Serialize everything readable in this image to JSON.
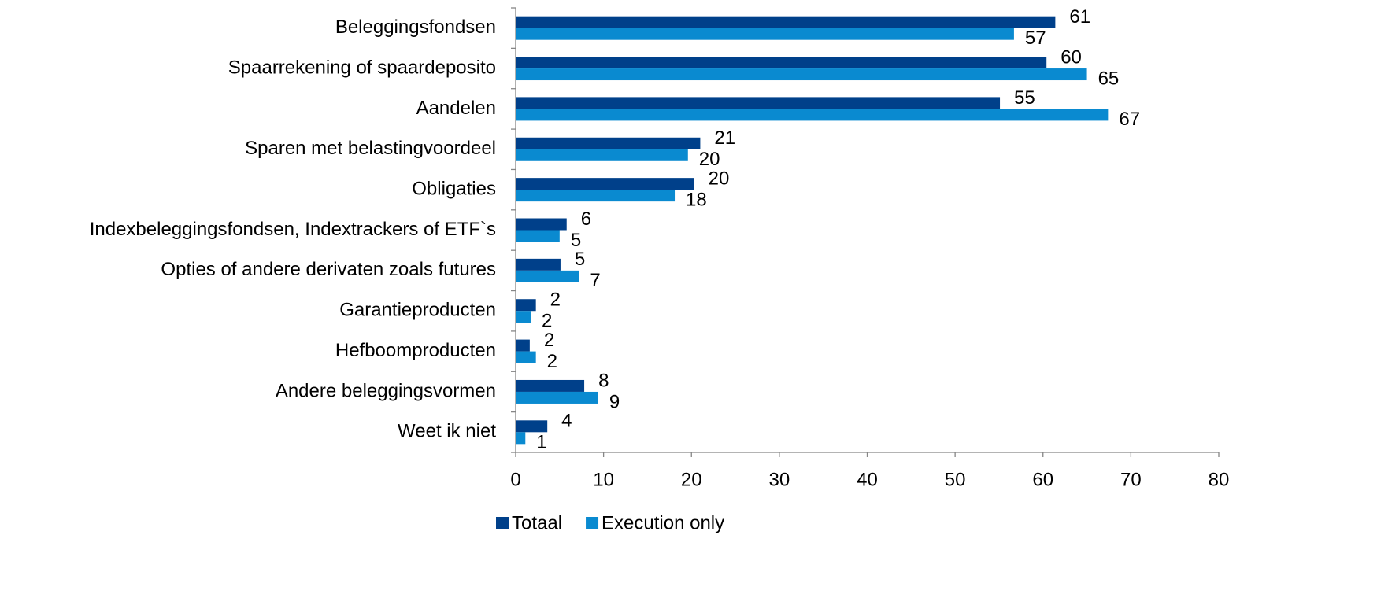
{
  "chart_data": {
    "type": "barh",
    "categories": [
      "Beleggingsfondsen",
      "Spaarrekening of spaardeposito",
      "Aandelen",
      "Sparen met belastingvoordeel",
      "Obligaties",
      "Indexbeleggingsfondsen, Indextrackers of ETF`s",
      "Opties of andere derivaten zoals futures",
      "Garantieproducten",
      "Hefboomproducten",
      "Andere beleggingsvormen",
      "Weet ik niet"
    ],
    "series": [
      {
        "name": "Totaal",
        "color": "#00408a",
        "values": [
          61.4,
          60.4,
          55.1,
          21.0,
          20.3,
          5.8,
          5.1,
          2.3,
          1.6,
          7.8,
          3.6
        ],
        "value_labels": [
          "61",
          "60",
          "55",
          "21",
          "20",
          "6",
          "5",
          "2",
          "2",
          "8",
          "4"
        ]
      },
      {
        "name": "Execution only",
        "color": "#0a8ad0",
        "values": [
          56.7,
          65.0,
          67.4,
          19.6,
          18.1,
          5.0,
          7.2,
          1.7,
          2.3,
          9.4,
          1.1
        ],
        "value_labels": [
          "57",
          "65",
          "67",
          "20",
          "18",
          "5",
          "7",
          "2",
          "2",
          "9",
          "1"
        ]
      }
    ],
    "xlim": [
      0,
      80
    ],
    "xticks": [
      0,
      10,
      20,
      30,
      40,
      50,
      60,
      70,
      80
    ],
    "legend": "bottom"
  }
}
